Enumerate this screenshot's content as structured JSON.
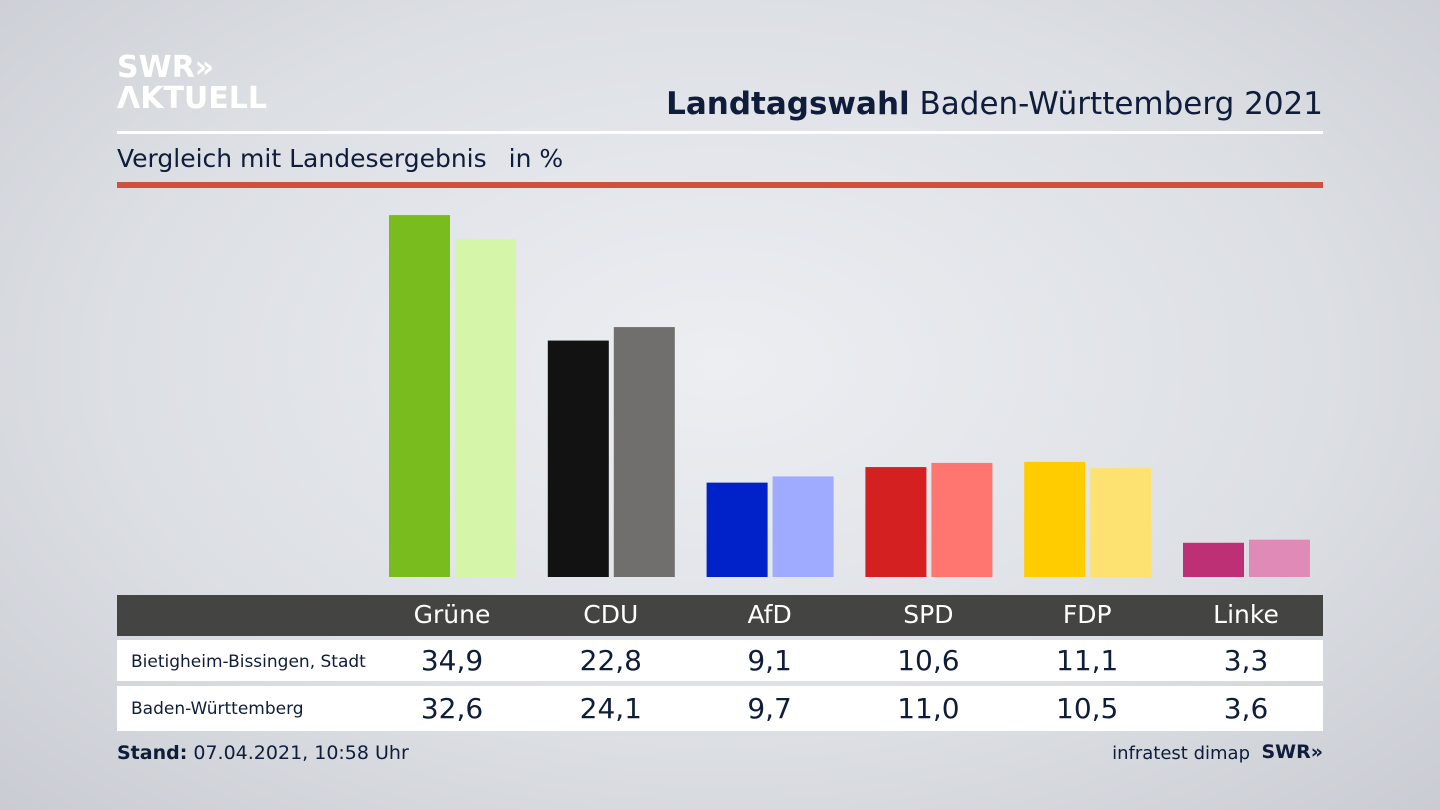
{
  "header": {
    "logo_line1": "SWR»",
    "logo_line2": "ΛKTUELL",
    "title_bold": "Landtagswahl",
    "title_rest": " Baden-Württemberg 2021",
    "subtitle": "Vergleich mit Landesergebnis",
    "unit": "in %"
  },
  "footer": {
    "stand_label": "Stand:",
    "stand_value": " 07.04.2021, 10:58 Uhr",
    "source": "infratest dimap",
    "brand": "SWR»"
  },
  "chart_data": {
    "type": "bar",
    "title": "Landtagswahl Baden-Württemberg 2021 – Vergleich mit Landesergebnis",
    "ylabel": "in %",
    "ylim": [
      0,
      35
    ],
    "categories": [
      "Grüne",
      "CDU",
      "AfD",
      "SPD",
      "FDP",
      "Linke"
    ],
    "series": [
      {
        "name": "Bietigheim-Bissingen, Stadt",
        "values": [
          "34,9",
          "22,8",
          "9,1",
          "10,6",
          "11,1",
          "3,3"
        ],
        "numeric": [
          34.9,
          22.8,
          9.1,
          10.6,
          11.1,
          3.3
        ],
        "colors": [
          "#78bc1e",
          "#121212",
          "#0022c8",
          "#d42020",
          "#ffcc00",
          "#be3075"
        ]
      },
      {
        "name": "Baden-Württemberg",
        "values": [
          "32,6",
          "24,1",
          "9,7",
          "11,0",
          "10,5",
          "3,6"
        ],
        "numeric": [
          32.6,
          24.1,
          9.7,
          11.0,
          10.5,
          3.6
        ],
        "colors": [
          "#d5f5a8",
          "#706f6d",
          "#9eabff",
          "#ff7570",
          "#fde272",
          "#df8ab7"
        ]
      }
    ]
  }
}
